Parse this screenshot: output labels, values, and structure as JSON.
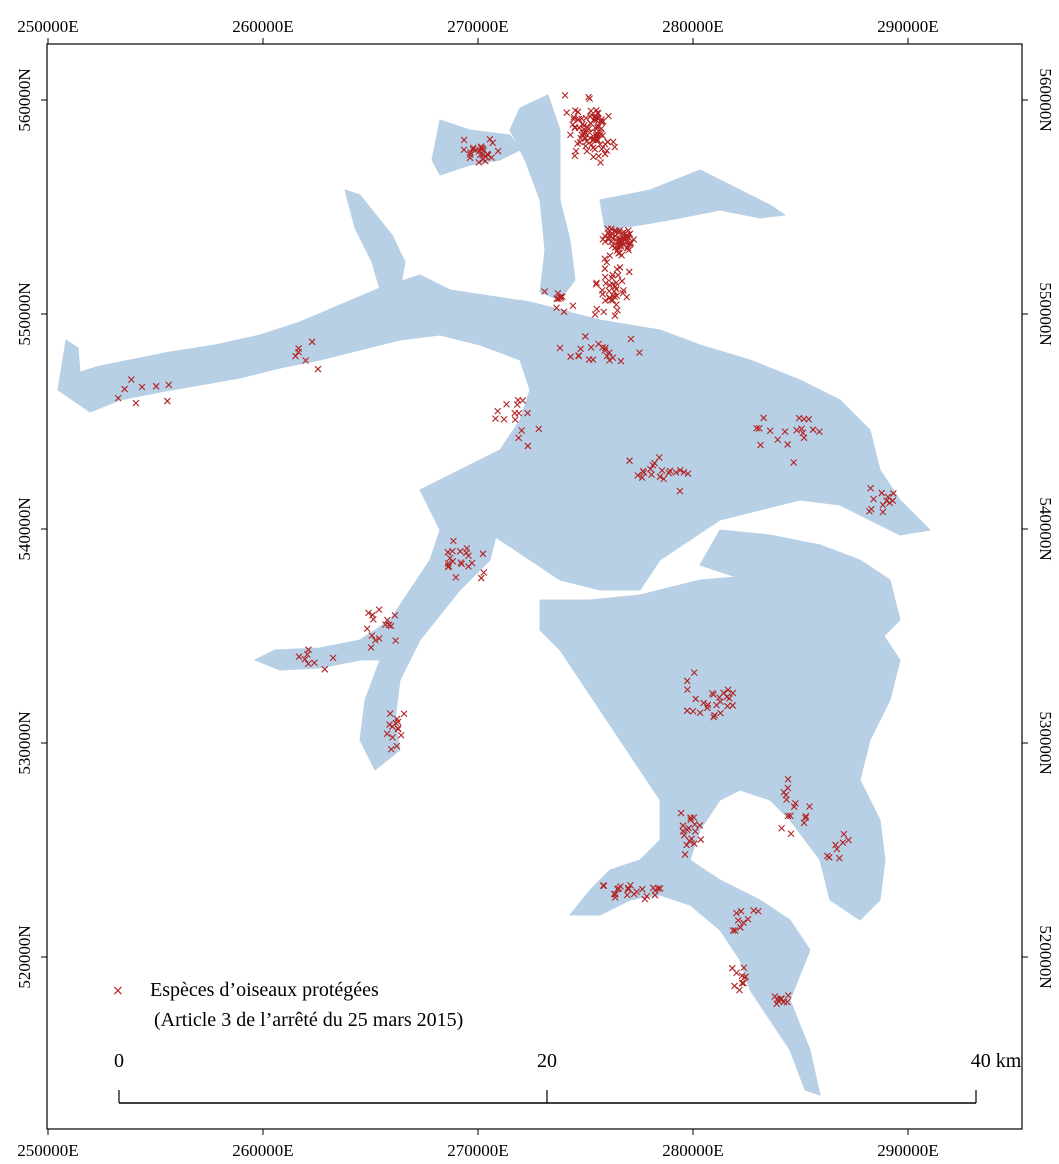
{
  "map": {
    "water_color": "#b8d0e6",
    "point_color": "#b22222",
    "frame_color": "#000000"
  },
  "axes": {
    "x_ticks": [
      "250000E",
      "260000E",
      "270000E",
      "280000E",
      "290000E"
    ],
    "y_ticks": [
      "560000N",
      "550000N",
      "540000N",
      "530000N",
      "520000N"
    ]
  },
  "legend": {
    "symbol": "×",
    "line1": "Espèces d’oiseaux protégées",
    "line2": "(Article 3 de l’arrêté du 25 mars 2015)"
  },
  "scale_bar": {
    "label_0": "0",
    "label_mid": "20",
    "label_end": "40 km"
  }
}
